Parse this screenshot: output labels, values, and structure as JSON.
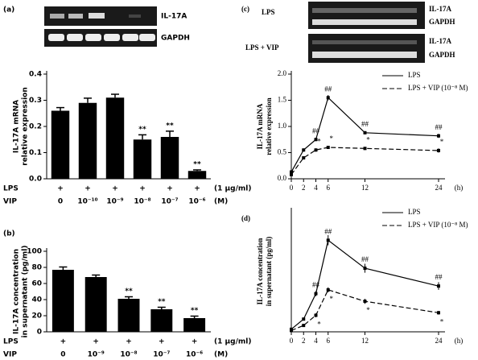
{
  "chart_data": [
    {
      "type": "bar",
      "panel_label": "(a)",
      "gel_labels": [
        "IL-17A",
        "GAPDH"
      ],
      "ylabel": [
        "IL-17A mRNA",
        "relative expression"
      ],
      "row_headers": [
        "LPS",
        "VIP"
      ],
      "row_units": [
        "(1 μg/ml)",
        "(M)"
      ],
      "lps_row": [
        "+",
        "+",
        "+",
        "+",
        "+",
        "+"
      ],
      "categories": [
        "0",
        "10⁻¹⁰",
        "10⁻⁹",
        "10⁻⁸",
        "10⁻⁷",
        "10⁻⁶"
      ],
      "values": [
        0.26,
        0.29,
        0.31,
        0.15,
        0.16,
        0.03
      ],
      "errors": [
        0.012,
        0.018,
        0.013,
        0.018,
        0.022,
        0.004
      ],
      "sig_labels": [
        null,
        null,
        null,
        "**",
        "**",
        "**"
      ],
      "color": "#000000",
      "ylim": [
        0,
        0.4
      ],
      "yticks": [
        {
          "value": 0,
          "label": "0.0"
        },
        0.1,
        0.2,
        0.3,
        0.4
      ]
    },
    {
      "type": "bar",
      "panel_label": "(b)",
      "ylabel": [
        "IL-17A concentration",
        "in supernatant (pg/ml)"
      ],
      "row_headers": [
        "LPS",
        "VIP"
      ],
      "row_units": [
        "(1 μg/ml)",
        "(M)"
      ],
      "lps_row": [
        "+",
        "+",
        "+",
        "+",
        "+"
      ],
      "categories": [
        "0",
        "10⁻⁹",
        "10⁻⁸",
        "10⁻⁷",
        "10⁻⁶"
      ],
      "values": [
        77,
        68,
        41,
        28,
        17
      ],
      "errors": [
        3.5,
        2.5,
        2.5,
        2.5,
        2.5
      ],
      "sig_labels": [
        null,
        null,
        "**",
        "**",
        "**"
      ],
      "color": "#000000",
      "ylim": [
        0,
        100
      ],
      "yticks": [
        0,
        20,
        40,
        60,
        80,
        100
      ]
    },
    {
      "type": "line",
      "panel_label": "(c)",
      "gel_groups": [
        "LPS",
        "LPS + VIP"
      ],
      "gel_labels": [
        "IL-17A",
        "GAPDH",
        "IL-17A",
        "GAPDH"
      ],
      "ylabel": [
        "IL-17A mRNA",
        "relative expression"
      ],
      "xunit": "(h)",
      "x": [
        0,
        2,
        4,
        6,
        12,
        24
      ],
      "series": [
        {
          "name": "LPS",
          "color": "#000000",
          "dashed": false,
          "values": [
            0.13,
            0.55,
            0.75,
            1.55,
            0.88,
            0.82
          ],
          "errors": [
            0.02,
            0.03,
            0.03,
            0.05,
            0.03,
            0.04
          ],
          "sig_labels": [
            null,
            null,
            "##",
            "##",
            "##",
            "##"
          ],
          "sig_position": "above"
        },
        {
          "name": "LPS + VIP (10⁻⁸ M)",
          "color": "#000000",
          "dashed": true,
          "values": [
            0.08,
            0.4,
            0.55,
            0.6,
            0.58,
            0.54
          ],
          "errors": [
            0.02,
            0.03,
            0.03,
            0.03,
            0.03,
            0.04
          ],
          "sig_labels": [
            null,
            null,
            "*",
            "*",
            "*",
            "*"
          ],
          "sig_position": "above"
        }
      ],
      "xlim": [
        0,
        24
      ],
      "xticks": [
        0,
        2,
        4,
        6,
        12,
        24
      ],
      "ylim": [
        0,
        2
      ],
      "yticks": [
        {
          "value": 0,
          "label": "0.0"
        },
        0.5,
        {
          "value": 1,
          "label": "1.0"
        },
        1.5,
        {
          "value": 2,
          "label": "2.0"
        }
      ],
      "legend": "upper right"
    },
    {
      "type": "line",
      "panel_label": "(d)",
      "ylabel": [
        "IL-17A concentration",
        "in supernatant (pg/ml)"
      ],
      "xunit": "(h)",
      "x": [
        0,
        2,
        4,
        6,
        12,
        24
      ],
      "series": [
        {
          "name": "LPS",
          "color": "#000000",
          "dashed": false,
          "values": [
            2,
            10,
            30,
            72,
            50,
            36
          ],
          "errors": [
            0.5,
            1,
            2,
            4,
            3.5,
            3
          ],
          "sig_labels": [
            null,
            null,
            "##",
            "##",
            "##",
            "##"
          ],
          "sig_position": "above"
        },
        {
          "name": "LPS + VIP (10⁻⁸ M)",
          "color": "#000000",
          "dashed": true,
          "values": [
            1,
            5,
            13,
            33,
            24,
            15
          ],
          "errors": [
            0.5,
            1,
            1.5,
            2,
            2,
            1.5
          ],
          "sig_labels": [
            null,
            null,
            "*",
            "*",
            "*",
            "*"
          ],
          "sig_position": "below"
        }
      ],
      "xlim": [
        0,
        24
      ],
      "xticks": [
        0,
        2,
        4,
        6,
        12,
        24
      ],
      "ylim": [
        0,
        95
      ],
      "legend": "upper right"
    }
  ]
}
